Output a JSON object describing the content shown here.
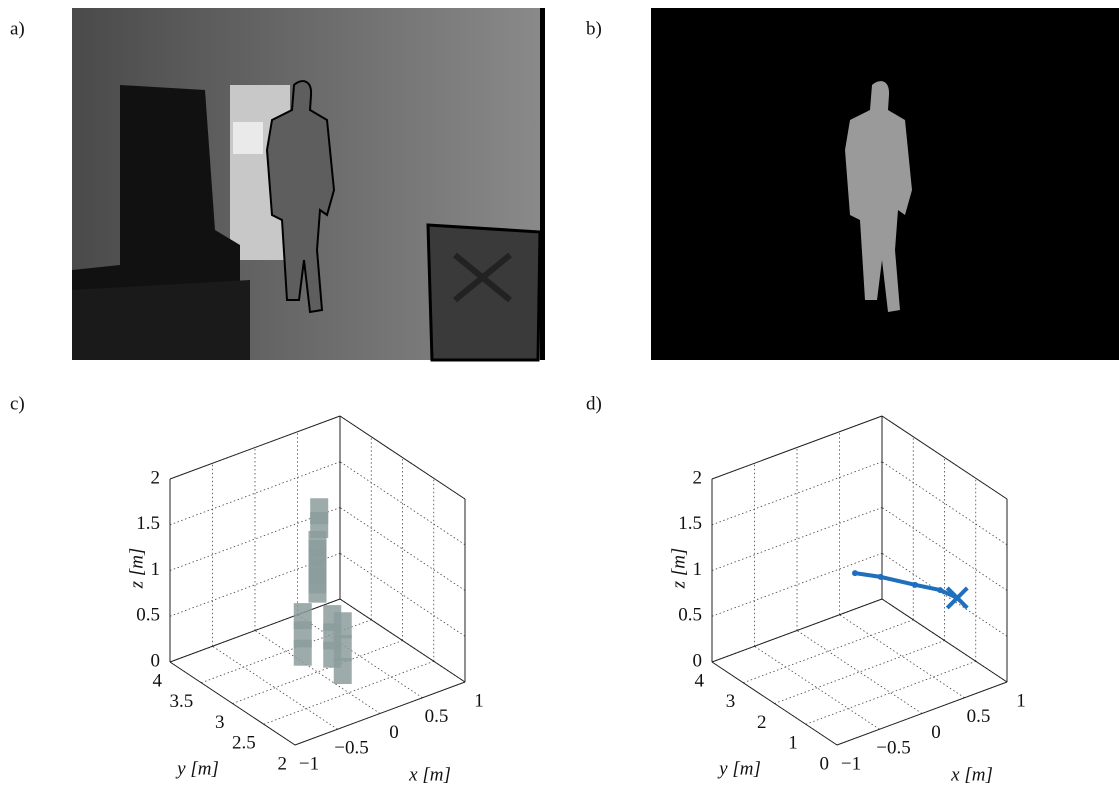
{
  "panels": [
    {
      "label": "a)"
    },
    {
      "label": "b)"
    }
  ],
  "chart_data": [
    {
      "type": "scatter3d",
      "label": "c)",
      "xlabel": "x [m]",
      "ylabel": "y [m]",
      "zlabel": "z [m]",
      "xlim": [
        -1,
        1
      ],
      "xticks": [
        {
          "value": -1,
          "label": "−1"
        },
        {
          "value": -0.5,
          "label": "−0.5"
        },
        0,
        0.5,
        1
      ],
      "ylim": [
        2,
        4
      ],
      "yticks": [
        2,
        2.5,
        3,
        3.5,
        4
      ],
      "zlim": [
        0,
        2
      ],
      "zticks": [
        0,
        0.5,
        1,
        1.5,
        2
      ],
      "grid": true,
      "series": [
        {
          "color": "#8c9c9c",
          "x": [
            0,
            0,
            0,
            0,
            0,
            0,
            0.02,
            0.02,
            0.1,
            0.1,
            0.1,
            -0.1,
            -0.1,
            -0.1,
            0.15,
            0.15,
            0.15
          ],
          "y": [
            3,
            3,
            3,
            3,
            3,
            3,
            3,
            3,
            2.9,
            2.9,
            2.9,
            3.1,
            3.1,
            3.1,
            2.8,
            2.8,
            2.8
          ],
          "z": [
            0.9,
            1.0,
            1.1,
            1.2,
            1.3,
            1.4,
            1.6,
            1.75,
            0.2,
            0.4,
            0.6,
            0.2,
            0.4,
            0.6,
            0.05,
            0.3,
            0.55
          ]
        }
      ]
    },
    {
      "type": "line3d",
      "label": "d)",
      "xlabel": "x [m]",
      "ylabel": "y [m]",
      "zlabel": "z [m]",
      "xlim": [
        -1,
        1
      ],
      "xticks": [
        {
          "value": -1,
          "label": "−1"
        },
        {
          "value": -0.5,
          "label": "−0.5"
        },
        0,
        0.5,
        1
      ],
      "ylim": [
        0,
        4
      ],
      "yticks": [
        0,
        1,
        2,
        3,
        4
      ],
      "zlim": [
        0,
        2
      ],
      "zticks": [
        0,
        0.5,
        1,
        1.5,
        2
      ],
      "grid": true,
      "series": [
        {
          "color": "#1f6fbf",
          "x": [
            0.05,
            0.2,
            0.37,
            0.5,
            0.54
          ],
          "y": [
            2.28,
            1.87,
            1.23,
            0.78,
            0.34
          ],
          "z": [
            1,
            1,
            1,
            1,
            1
          ]
        }
      ]
    }
  ]
}
